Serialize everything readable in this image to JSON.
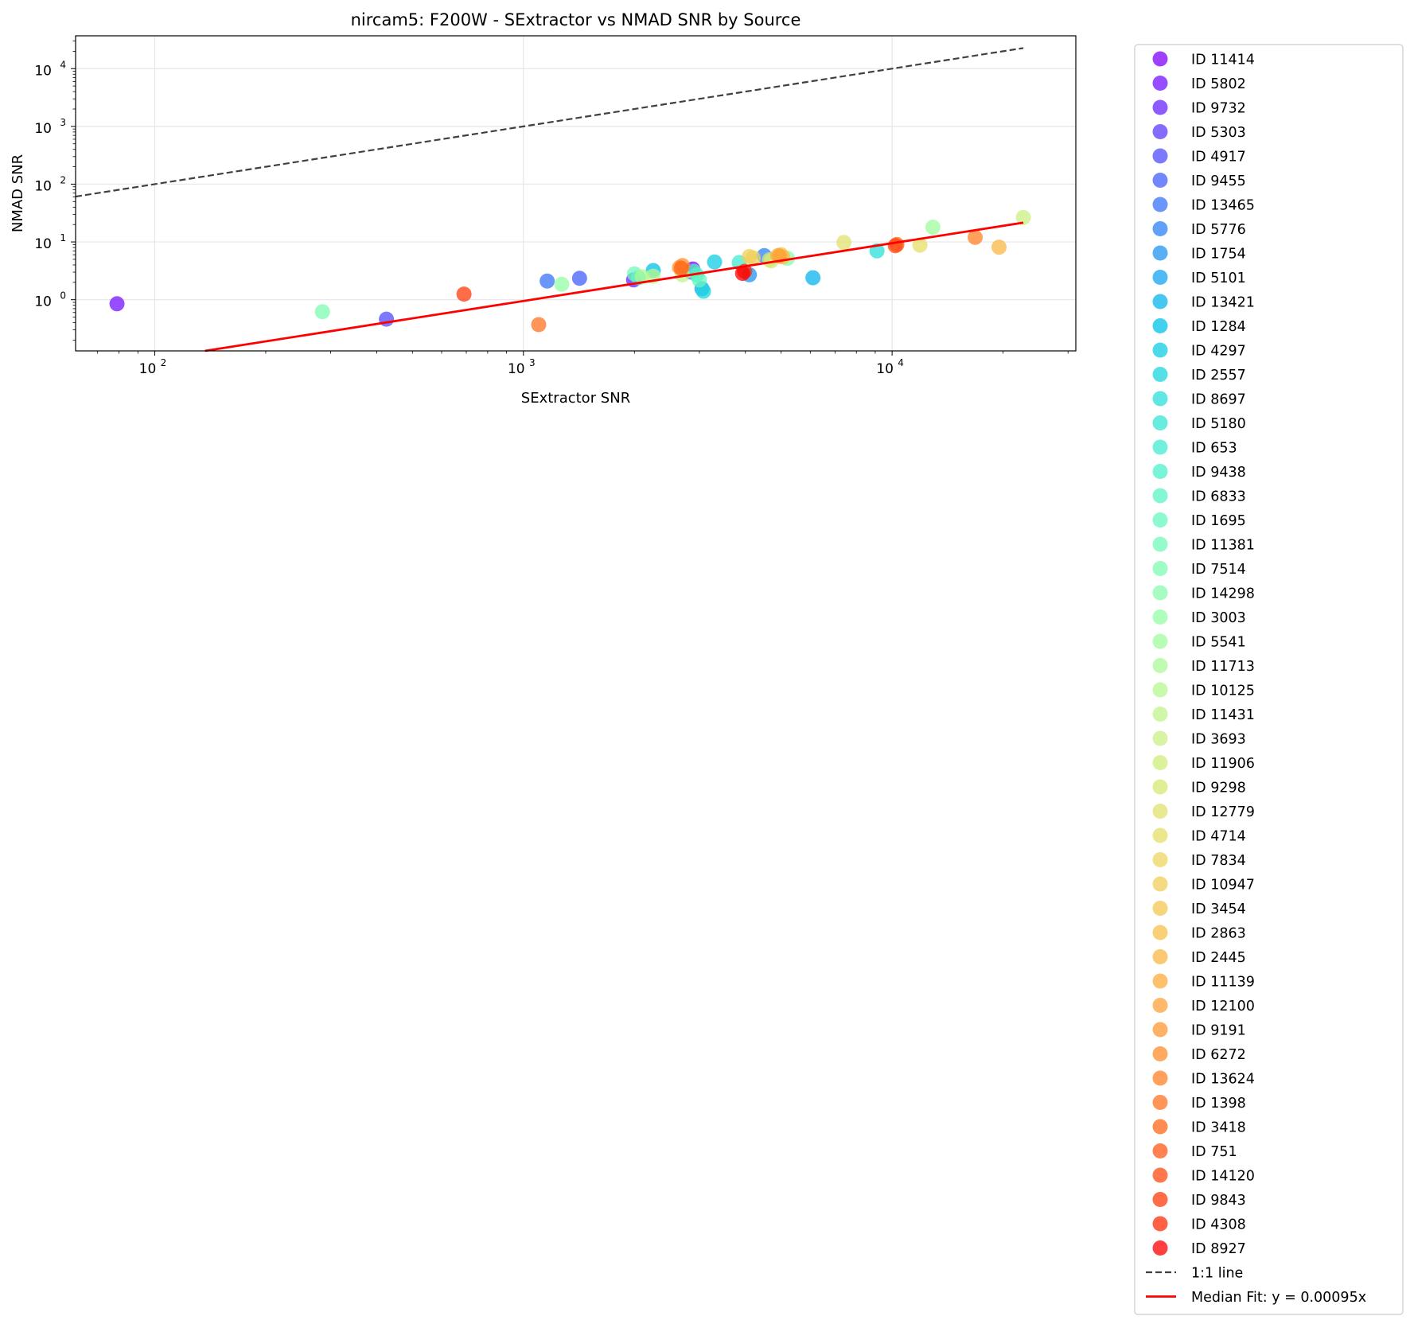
{
  "chart_data": {
    "type": "scatter",
    "title": "nircam5: F200W - SExtractor vs NMAD SNR by Source",
    "xlabel": "SExtractor SNR",
    "ylabel": "NMAD SNR",
    "xscale": "log",
    "yscale": "log",
    "xlim": [
      61,
      31500
    ],
    "ylim": [
      0.13,
      37000
    ],
    "grid": true,
    "legend_position": "outside-right",
    "x_ticks": [
      {
        "base": "10",
        "exp": "2",
        "value": 100
      },
      {
        "base": "10",
        "exp": "3",
        "value": 1000
      },
      {
        "base": "10",
        "exp": "4",
        "value": 10000
      }
    ],
    "y_ticks": [
      {
        "base": "10",
        "exp": "0",
        "value": 1
      },
      {
        "base": "10",
        "exp": "1",
        "value": 10
      },
      {
        "base": "10",
        "exp": "2",
        "value": 100
      },
      {
        "base": "10",
        "exp": "3",
        "value": 1000
      },
      {
        "base": "10",
        "exp": "4",
        "value": 10000
      }
    ],
    "series": [
      {
        "name": "ID 11414",
        "color": "#8000ff",
        "x": 2880,
        "y": 3.4
      },
      {
        "name": "ID 5802",
        "color": "#7413ff",
        "x": 79,
        "y": 0.85
      },
      {
        "name": "ID 9732",
        "color": "#6826fe",
        "x": 1990,
        "y": 2.2
      },
      {
        "name": "ID 5303",
        "color": "#5c39fd",
        "x": 2850,
        "y": 3.0
      },
      {
        "name": "ID 4917",
        "color": "#504cfc",
        "x": 425,
        "y": 0.46
      },
      {
        "name": "ID 9455",
        "color": "#445ffb",
        "x": 1420,
        "y": 2.35
      },
      {
        "name": "ID 13465",
        "color": "#3871f8",
        "x": 1160,
        "y": 2.1
      },
      {
        "name": "ID 5776",
        "color": "#2c82f6",
        "x": 4500,
        "y": 5.8
      },
      {
        "name": "ID 1754",
        "color": "#2094f3",
        "x": 4100,
        "y": 2.7
      },
      {
        "name": "ID 5101",
        "color": "#14a4f0",
        "x": 3050,
        "y": 1.55
      },
      {
        "name": "ID 13421",
        "color": "#08b4ec",
        "x": 6100,
        "y": 2.4
      },
      {
        "name": "ID 1284",
        "color": "#00c2e8",
        "x": 2250,
        "y": 3.2
      },
      {
        "name": "ID 4297",
        "color": "#10cde4",
        "x": 3300,
        "y": 4.5
      },
      {
        "name": "ID 2557",
        "color": "#1cd6df",
        "x": 3080,
        "y": 1.4
      },
      {
        "name": "ID 8697",
        "color": "#2adfda",
        "x": 9100,
        "y": 7.0
      },
      {
        "name": "ID 5180",
        "color": "#36e6d5",
        "x": 2050,
        "y": 2.4
      },
      {
        "name": "ID 653",
        "color": "#42ebd0",
        "x": 3850,
        "y": 4.4
      },
      {
        "name": "ID 9438",
        "color": "#4ef0ca",
        "x": 2950,
        "y": 2.7
      },
      {
        "name": "ID 6833",
        "color": "#5af4c4",
        "x": 2900,
        "y": 3.1
      },
      {
        "name": "ID 1695",
        "color": "#66f7be",
        "x": 3000,
        "y": 2.2
      },
      {
        "name": "ID 11381",
        "color": "#72f9b8",
        "x": 2000,
        "y": 2.8
      },
      {
        "name": "ID 7514",
        "color": "#7efbb2",
        "x": 285,
        "y": 0.62
      },
      {
        "name": "ID 14298",
        "color": "#8afcac",
        "x": 5200,
        "y": 5.2
      },
      {
        "name": "ID 3003",
        "color": "#96fda5",
        "x": 1270,
        "y": 1.85
      },
      {
        "name": "ID 5541",
        "color": "#a0fc9e",
        "x": 12900,
        "y": 18.0
      },
      {
        "name": "ID 11713",
        "color": "#acfa97",
        "x": 2100,
        "y": 2.5
      },
      {
        "name": "ID 10125",
        "color": "#b6f890",
        "x": 2250,
        "y": 2.55
      },
      {
        "name": "ID 11431",
        "color": "#c0f489",
        "x": 2700,
        "y": 2.7
      },
      {
        "name": "ID 3693",
        "color": "#c8f082",
        "x": 22700,
        "y": 26.5
      },
      {
        "name": "ID 11906",
        "color": "#d0ec7b",
        "x": 4700,
        "y": 4.7
      },
      {
        "name": "ID 9298",
        "color": "#d8e774",
        "x": 4650,
        "y": 4.9
      },
      {
        "name": "ID 12779",
        "color": "#e0e26d",
        "x": 7400,
        "y": 9.8
      },
      {
        "name": "ID 4714",
        "color": "#e6dd66",
        "x": 11900,
        "y": 8.8
      },
      {
        "name": "ID 7834",
        "color": "#ecd560",
        "x": 4200,
        "y": 5.3
      },
      {
        "name": "ID 10947",
        "color": "#f0cf59",
        "x": 4100,
        "y": 5.6
      },
      {
        "name": "ID 3454",
        "color": "#f4c752",
        "x": 5000,
        "y": 6.0
      },
      {
        "name": "ID 2863",
        "color": "#f8bf4b",
        "x": 5050,
        "y": 5.5
      },
      {
        "name": "ID 2445",
        "color": "#fab744",
        "x": 19500,
        "y": 8.1
      },
      {
        "name": "ID 11139",
        "color": "#fcac3e",
        "x": 4900,
        "y": 5.8
      },
      {
        "name": "ID 12100",
        "color": "#fea338",
        "x": 4950,
        "y": 5.7
      },
      {
        "name": "ID 9191",
        "color": "#ff9832",
        "x": 2650,
        "y": 3.6
      },
      {
        "name": "ID 6272",
        "color": "#ff8c2c",
        "x": 2700,
        "y": 3.9
      },
      {
        "name": "ID 13624",
        "color": "#ff8026",
        "x": 16800,
        "y": 12.0
      },
      {
        "name": "ID 1398",
        "color": "#ff7220",
        "x": 1100,
        "y": 0.37
      },
      {
        "name": "ID 3418",
        "color": "#ff651a",
        "x": 2680,
        "y": 3.5
      },
      {
        "name": "ID 751",
        "color": "#ff5815",
        "x": 10300,
        "y": 9.0
      },
      {
        "name": "ID 14120",
        "color": "#ff4a10",
        "x": 10200,
        "y": 8.6
      },
      {
        "name": "ID 9843",
        "color": "#ff3b0b",
        "x": 690,
        "y": 1.25
      },
      {
        "name": "ID 4308",
        "color": "#ff2c06",
        "x": 3980,
        "y": 3.1
      },
      {
        "name": "ID 8927",
        "color": "#ff0000",
        "x": 3930,
        "y": 2.85
      }
    ],
    "lines": [
      {
        "name": "1:1 line",
        "style": "dashed",
        "color": "#404040",
        "x": [
          61,
          22700
        ],
        "y": [
          61,
          22700
        ]
      },
      {
        "name": "Median Fit: y = 0.00095x",
        "style": "solid",
        "color": "#ff0000",
        "slope": 0.00095,
        "x": [
          120,
          22700
        ]
      }
    ]
  }
}
